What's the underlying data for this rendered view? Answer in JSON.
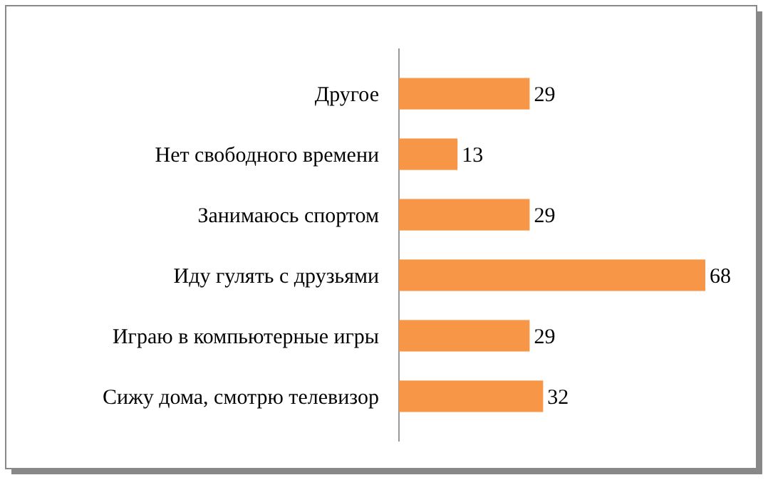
{
  "chart_data": {
    "type": "bar",
    "orientation": "horizontal",
    "categories": [
      "Другое",
      "Нет свободного времени",
      "Занимаюсь спортом",
      "Иду гулять с друзьями",
      "Играю в компьютерные игры",
      "Сижу дома, смотрю телевизор"
    ],
    "values": [
      29,
      13,
      29,
      68,
      29,
      32
    ],
    "color": "#f79646",
    "data_labels": true
  }
}
